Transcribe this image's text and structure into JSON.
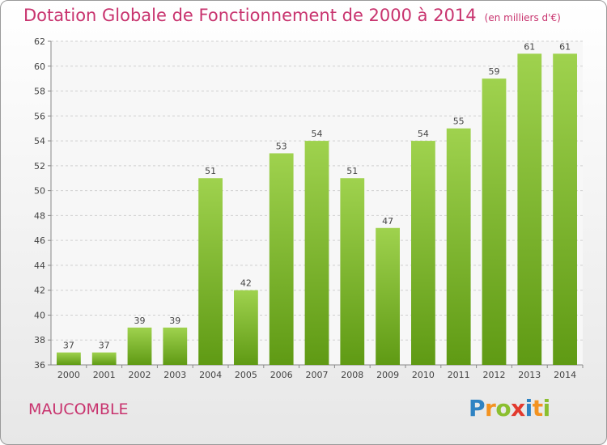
{
  "title": "Dotation Globale de Fonctionnement de 2000 à 2014",
  "subtitle": "(en milliers d'€)",
  "commune": "MAUCOMBLE",
  "logo": {
    "text": "Proxiti",
    "letters": [
      {
        "ch": "P",
        "color": "#2f83c3"
      },
      {
        "ch": "r",
        "color": "#f39321"
      },
      {
        "ch": "o",
        "color": "#8bbf2f"
      },
      {
        "ch": "x",
        "color": "#e23a2e"
      },
      {
        "ch": "i",
        "color": "#2f83c3"
      },
      {
        "ch": "t",
        "color": "#f39321"
      },
      {
        "ch": "i",
        "color": "#8bbf2f"
      }
    ]
  },
  "colors": {
    "accent": "#c8336e",
    "bar_top": "#9fd24e",
    "bar_bottom": "#5f9a14"
  },
  "chart_data": {
    "type": "bar",
    "categories": [
      "2000",
      "2001",
      "2002",
      "2003",
      "2004",
      "2005",
      "2006",
      "2007",
      "2008",
      "2009",
      "2010",
      "2011",
      "2012",
      "2013",
      "2014"
    ],
    "values": [
      37,
      37,
      39,
      39,
      51,
      42,
      53,
      54,
      51,
      47,
      54,
      55,
      59,
      61,
      61
    ],
    "ylim": [
      36,
      62
    ],
    "yticks": [
      36,
      38,
      40,
      42,
      44,
      46,
      48,
      50,
      52,
      54,
      56,
      58,
      60,
      62
    ],
    "grid": true,
    "legend": "none"
  }
}
